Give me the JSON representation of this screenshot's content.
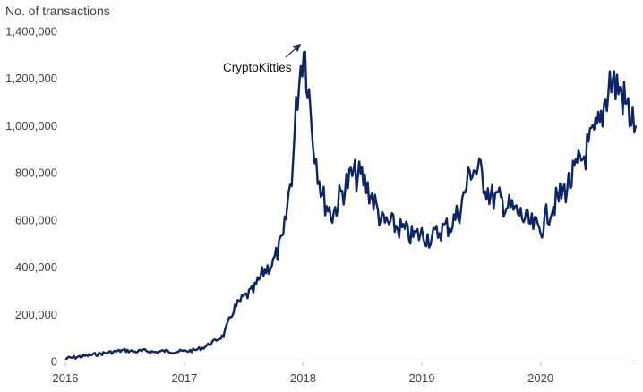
{
  "chart_data": {
    "type": "line",
    "title": "",
    "ylabel": "No. of transactions",
    "xlabel": "",
    "ylim": [
      0,
      1400000
    ],
    "xlim": [
      "2016-01-01",
      "2020-10-20"
    ],
    "grid": false,
    "legend": "none",
    "line_color": "#0b2566",
    "y_ticks": [
      {
        "value": 0,
        "label": "0"
      },
      {
        "value": 200000,
        "label": "200,000"
      },
      {
        "value": 400000,
        "label": "400,000"
      },
      {
        "value": 600000,
        "label": "600,000"
      },
      {
        "value": 800000,
        "label": "800,000"
      },
      {
        "value": 1000000,
        "label": "1,000,000"
      },
      {
        "value": 1200000,
        "label": "1,200,000"
      },
      {
        "value": 1400000,
        "label": "1,400,000"
      }
    ],
    "x_ticks": [
      {
        "value": "2016-01-01",
        "label": "2016"
      },
      {
        "value": "2017-01-01",
        "label": "2017"
      },
      {
        "value": "2018-01-01",
        "label": "2018"
      },
      {
        "value": "2019-01-01",
        "label": "2019"
      },
      {
        "value": "2020-01-01",
        "label": "2020"
      }
    ],
    "annotation": {
      "text": "CryptoKitties",
      "date": "2018-01-03",
      "value": 1355000
    },
    "series": [
      {
        "values": [
          [
            "2016-01-01",
            12000
          ],
          [
            "2016-02-01",
            18000
          ],
          [
            "2016-03-01",
            24000
          ],
          [
            "2016-04-01",
            30000
          ],
          [
            "2016-05-01",
            36000
          ],
          [
            "2016-06-01",
            42000
          ],
          [
            "2016-07-01",
            48000
          ],
          [
            "2016-08-01",
            42000
          ],
          [
            "2016-09-01",
            46000
          ],
          [
            "2016-10-01",
            40000
          ],
          [
            "2016-11-01",
            45000
          ],
          [
            "2016-12-01",
            42000
          ],
          [
            "2017-01-01",
            44000
          ],
          [
            "2017-02-01",
            48000
          ],
          [
            "2017-03-01",
            60000
          ],
          [
            "2017-04-01",
            85000
          ],
          [
            "2017-05-01",
            110000
          ],
          [
            "2017-06-01",
            220000
          ],
          [
            "2017-07-01",
            270000
          ],
          [
            "2017-08-01",
            300000
          ],
          [
            "2017-09-01",
            380000
          ],
          [
            "2017-10-01",
            420000
          ],
          [
            "2017-11-01",
            520000
          ],
          [
            "2017-12-01",
            850000
          ],
          [
            "2017-12-15",
            1150000
          ],
          [
            "2018-01-03",
            1355000
          ],
          [
            "2018-01-15",
            1200000
          ],
          [
            "2018-02-01",
            950000
          ],
          [
            "2018-03-01",
            700000
          ],
          [
            "2018-04-01",
            620000
          ],
          [
            "2018-05-01",
            720000
          ],
          [
            "2018-06-01",
            790000
          ],
          [
            "2018-07-01",
            780000
          ],
          [
            "2018-08-01",
            700000
          ],
          [
            "2018-09-01",
            590000
          ],
          [
            "2018-10-01",
            580000
          ],
          [
            "2018-11-01",
            560000
          ],
          [
            "2018-12-01",
            530000
          ],
          [
            "2019-01-01",
            540000
          ],
          [
            "2019-02-01",
            520000
          ],
          [
            "2019-03-01",
            560000
          ],
          [
            "2019-04-01",
            580000
          ],
          [
            "2019-05-01",
            650000
          ],
          [
            "2019-06-01",
            820000
          ],
          [
            "2019-07-01",
            800000
          ],
          [
            "2019-08-01",
            700000
          ],
          [
            "2019-09-01",
            680000
          ],
          [
            "2019-10-01",
            650000
          ],
          [
            "2019-11-01",
            620000
          ],
          [
            "2019-12-01",
            580000
          ],
          [
            "2020-01-01",
            560000
          ],
          [
            "2020-02-01",
            650000
          ],
          [
            "2020-03-01",
            700000
          ],
          [
            "2020-04-01",
            760000
          ],
          [
            "2020-05-01",
            840000
          ],
          [
            "2020-06-01",
            920000
          ],
          [
            "2020-07-01",
            1000000
          ],
          [
            "2020-08-01",
            1200000
          ],
          [
            "2020-09-01",
            1150000
          ],
          [
            "2020-10-01",
            1050000
          ],
          [
            "2020-10-20",
            1000000
          ]
        ]
      }
    ]
  }
}
